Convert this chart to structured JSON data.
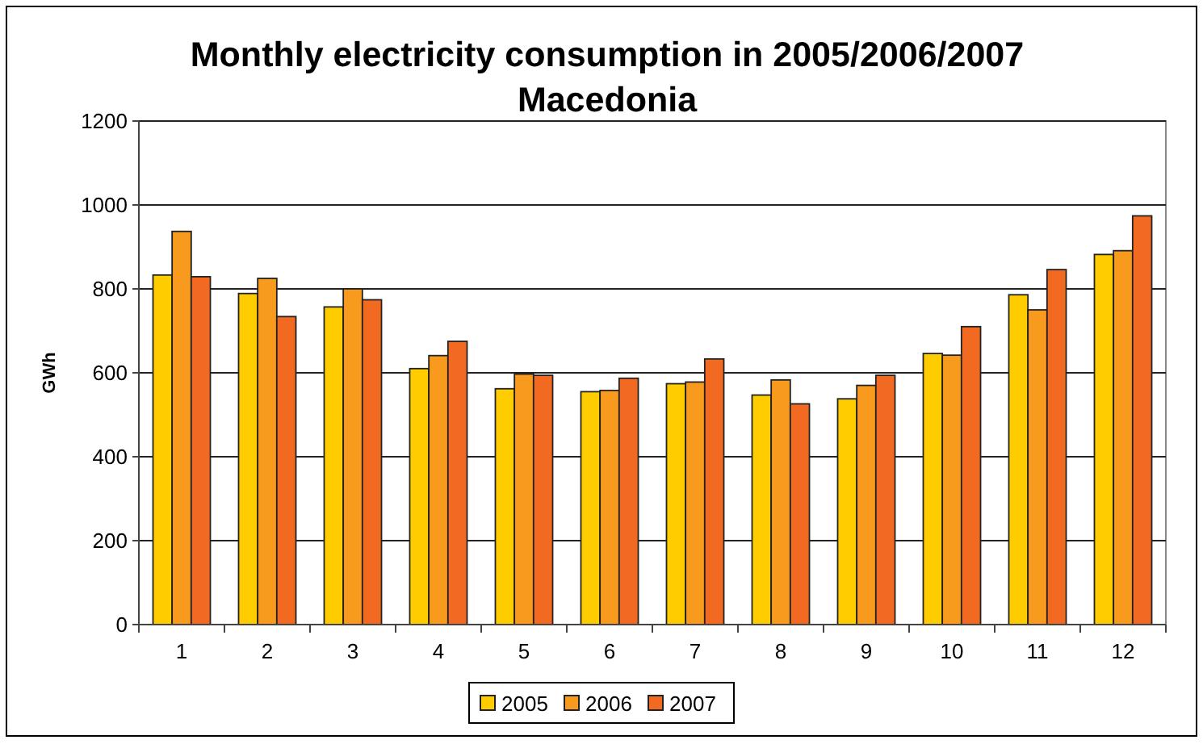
{
  "chart_data": {
    "type": "bar",
    "title": "Monthly electricity consumption in 2005/2006/2007\nMacedonia",
    "ylabel": "GWh",
    "categories": [
      "1",
      "2",
      "3",
      "4",
      "5",
      "6",
      "7",
      "8",
      "9",
      "10",
      "11",
      "12"
    ],
    "series": [
      {
        "name": "2005",
        "color": "#ffcc00",
        "values": [
          833,
          789,
          757,
          610,
          562,
          555,
          574,
          547,
          538,
          646,
          786,
          882
        ]
      },
      {
        "name": "2006",
        "color": "#f89a1e",
        "values": [
          937,
          825,
          800,
          641,
          597,
          558,
          578,
          583,
          570,
          642,
          750,
          891
        ]
      },
      {
        "name": "2007",
        "color": "#f26a22",
        "values": [
          829,
          734,
          774,
          675,
          594,
          587,
          633,
          526,
          594,
          710,
          846,
          974
        ]
      }
    ],
    "ylim": [
      0,
      1200
    ],
    "yticks": [
      0,
      200,
      400,
      600,
      800,
      1000,
      1200
    ],
    "grid": "y",
    "legend": "bottom"
  }
}
